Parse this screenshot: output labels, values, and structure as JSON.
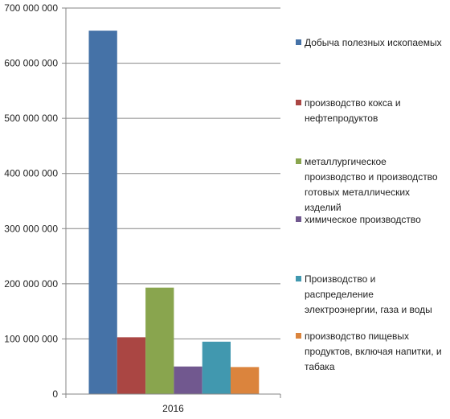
{
  "chart_data": {
    "type": "bar",
    "categories": [
      "2016"
    ],
    "series": [
      {
        "name": "Добыча полезных ископаемых",
        "values": [
          659000000
        ],
        "color": "#4572A7"
      },
      {
        "name": "производство кокса и нефтепродуктов",
        "values": [
          103000000
        ],
        "color": "#AA4643"
      },
      {
        "name": "металлургическое производство и производство готовых металлических изделий",
        "values": [
          193000000
        ],
        "color": "#89A54E"
      },
      {
        "name": "химическое производство",
        "values": [
          50000000
        ],
        "color": "#71588F"
      },
      {
        "name": "Производство и распределение электроэнергии, газа и воды",
        "values": [
          95000000
        ],
        "color": "#4198AF"
      },
      {
        "name": "производство пищевых продуктов, включая напитки, и табака",
        "values": [
          49000000
        ],
        "color": "#DB843D"
      }
    ],
    "ylim": [
      0,
      700000000
    ],
    "yticks": [
      "0",
      "100 000 000",
      "200 000 000",
      "300 000 000",
      "400 000 000",
      "500 000 000",
      "600 000 000",
      "700 000 000"
    ],
    "grid": true,
    "legend_position": "right"
  }
}
